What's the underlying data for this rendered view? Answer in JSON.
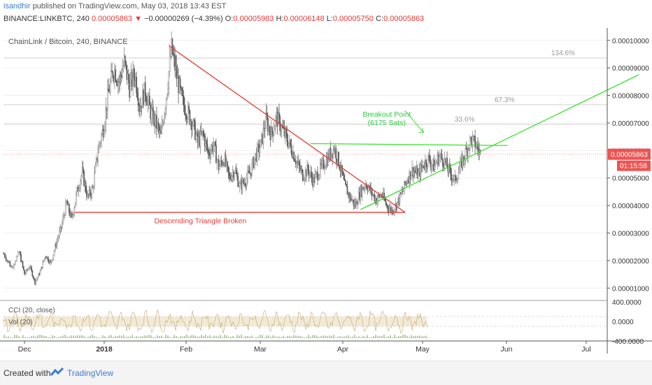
{
  "header": {
    "author": "isandhir",
    "published_text": " published on TradingView.com, May 03, 2018 13:43 EST",
    "symbol": "BINANCE:LINKBTC, 240",
    "last_price": "0.00005863",
    "change_arrow": "▼",
    "change": "−0.00000269 (−4.39%)",
    "o_label": "O:",
    "o_value": "0.00005983",
    "h_label": "H:",
    "h_value": "0.00006148",
    "l_label": "L:",
    "l_value": "0.00005750",
    "c_label": "C:",
    "c_value": "0.00005863"
  },
  "footer": {
    "created_with": "Created with",
    "brand": "TradingView"
  },
  "colors": {
    "down": "#e53935",
    "candle_up": "#8c8c8c",
    "candle_down": "#5a5a5a",
    "triangle": "#e53935",
    "support": "#38e02b",
    "price_tag": "#ef5350",
    "annotation_green": "#2ecc40",
    "cci_band": "#f3ead6"
  },
  "chart_data": {
    "type": "candlestick",
    "title": "ChainLink / Bitcoin, 240, BINANCE",
    "y_ticks": [
      "0.00010000",
      "0.00009000",
      "0.00008000",
      "0.00007000",
      "0.00006000",
      "0.00005000",
      "0.00004000",
      "0.00003000",
      "0.00002000",
      "0.00001000"
    ],
    "y_values": [
      0.0001,
      9e-05,
      8e-05,
      7e-05,
      6e-05,
      5e-05,
      4e-05,
      3e-05,
      2e-05,
      1e-05
    ],
    "x_ticks": [
      "Dec",
      "2018",
      "Feb",
      "Mar",
      "Apr",
      "May",
      "Jun",
      "Jul"
    ],
    "current_price_label": "0.00005863",
    "current_price": 5.863e-05,
    "countdown_label": "01:15:58",
    "fib_levels": [
      {
        "label": "134.6%",
        "value": 9.36e-05
      },
      {
        "label": "67.3%",
        "value": 7.66e-05
      },
      {
        "label": "33.6%",
        "value": 6.95e-05
      }
    ],
    "price_path": [
      [
        0,
        2.25e-05
      ],
      [
        3,
        1.75e-05
      ],
      [
        6,
        2.3e-05
      ],
      [
        8,
        1.5e-05
      ],
      [
        10,
        1.8e-05
      ],
      [
        12,
        1.2e-05
      ],
      [
        14,
        1.6e-05
      ],
      [
        16,
        2.2e-05
      ],
      [
        18,
        1.9e-05
      ],
      [
        20,
        2.6e-05
      ],
      [
        22,
        3.2e-05
      ],
      [
        24,
        4.1e-05
      ],
      [
        26,
        3.5e-05
      ],
      [
        28,
        4.5e-05
      ],
      [
        30,
        5.2e-05
      ],
      [
        32,
        4.3e-05
      ],
      [
        34,
        4.6e-05
      ],
      [
        36,
        6e-05
      ],
      [
        38,
        6.8e-05
      ],
      [
        40,
        8.1e-05
      ],
      [
        42,
        9e-05
      ],
      [
        44,
        8.5e-05
      ],
      [
        46,
        9.2e-05
      ],
      [
        48,
        8.3e-05
      ],
      [
        50,
        8.8e-05
      ],
      [
        52,
        7.6e-05
      ],
      [
        54,
        8.2e-05
      ],
      [
        56,
        7.4e-05
      ],
      [
        58,
        7e-05
      ],
      [
        60,
        6.5e-05
      ],
      [
        62,
        8e-05
      ],
      [
        64,
        9.7e-05
      ],
      [
        66,
        8.7e-05
      ],
      [
        68,
        7.8e-05
      ],
      [
        70,
        7.4e-05
      ],
      [
        72,
        7e-05
      ],
      [
        74,
        6.3e-05
      ],
      [
        76,
        6.6e-05
      ],
      [
        78,
        5.9e-05
      ],
      [
        80,
        6.2e-05
      ],
      [
        82,
        5.4e-05
      ],
      [
        84,
        5.7e-05
      ],
      [
        86,
        5e-05
      ],
      [
        88,
        5.3e-05
      ],
      [
        90,
        4.7e-05
      ],
      [
        92,
        4.9e-05
      ],
      [
        94,
        5.2e-05
      ],
      [
        96,
        5.8e-05
      ],
      [
        98,
        6.2e-05
      ],
      [
        100,
        7.1e-05
      ],
      [
        102,
        6.6e-05
      ],
      [
        104,
        7.2e-05
      ],
      [
        106,
        6.8e-05
      ],
      [
        108,
        6.4e-05
      ],
      [
        110,
        6e-05
      ],
      [
        112,
        5.5e-05
      ],
      [
        114,
        5.1e-05
      ],
      [
        116,
        5.3e-05
      ],
      [
        118,
        4.9e-05
      ],
      [
        120,
        5.2e-05
      ],
      [
        122,
        5.5e-05
      ],
      [
        124,
        5.8e-05
      ],
      [
        126,
        6.1e-05
      ],
      [
        128,
        5.5e-05
      ],
      [
        130,
        4.7e-05
      ],
      [
        132,
        4.3e-05
      ],
      [
        134,
        4e-05
      ],
      [
        136,
        4.5e-05
      ],
      [
        138,
        4.8e-05
      ],
      [
        140,
        4.5e-05
      ],
      [
        142,
        4.2e-05
      ],
      [
        144,
        4.4e-05
      ],
      [
        146,
        4e-05
      ],
      [
        148,
        3.8e-05
      ],
      [
        150,
        4.1e-05
      ],
      [
        152,
        4.5e-05
      ],
      [
        154,
        5e-05
      ],
      [
        156,
        5.3e-05
      ],
      [
        158,
        5.1e-05
      ],
      [
        160,
        5.5e-05
      ],
      [
        162,
        5.7e-05
      ],
      [
        164,
        5.4e-05
      ],
      [
        166,
        5.8e-05
      ],
      [
        168,
        5.6e-05
      ],
      [
        170,
        5.2e-05
      ],
      [
        172,
        4.9e-05
      ],
      [
        174,
        5.4e-05
      ],
      [
        176,
        5.9e-05
      ],
      [
        178,
        6.4e-05
      ],
      [
        180,
        6.2e-05
      ],
      [
        182,
        5.8e-05
      ]
    ],
    "x_range": [
      0,
      230
    ],
    "y_range": [
      5.5e-06,
      0.000104
    ],
    "triangle": {
      "top": [
        63,
        9.8e-05
      ],
      "bottom_left": [
        27,
        3.75e-05
      ],
      "bottom_right": [
        153,
        3.75e-05
      ]
    },
    "breakout_line": {
      "from": [
        117,
        6.25e-05
      ],
      "to": [
        192,
        6.18e-05
      ]
    },
    "support_line": {
      "from": [
        136,
        3.85e-05
      ],
      "to": [
        242,
        8.75e-05
      ]
    },
    "annotations": [
      {
        "text": "Breakout Point",
        "x": 146,
        "y": 7.23e-05,
        "color": "green"
      },
      {
        "text": "(6175 Sats)",
        "x": 146,
        "y": 6.92e-05,
        "color": "green"
      },
      {
        "text": "Descending Triangle Broken",
        "x": 75,
        "y": 3.35e-05,
        "color": "red"
      }
    ],
    "indicators": {
      "labels": [
        "CCI (20, close)",
        "Vol (20)"
      ],
      "ticks": [
        "400.0000",
        "0.0000",
        "-400.0000"
      ]
    }
  }
}
